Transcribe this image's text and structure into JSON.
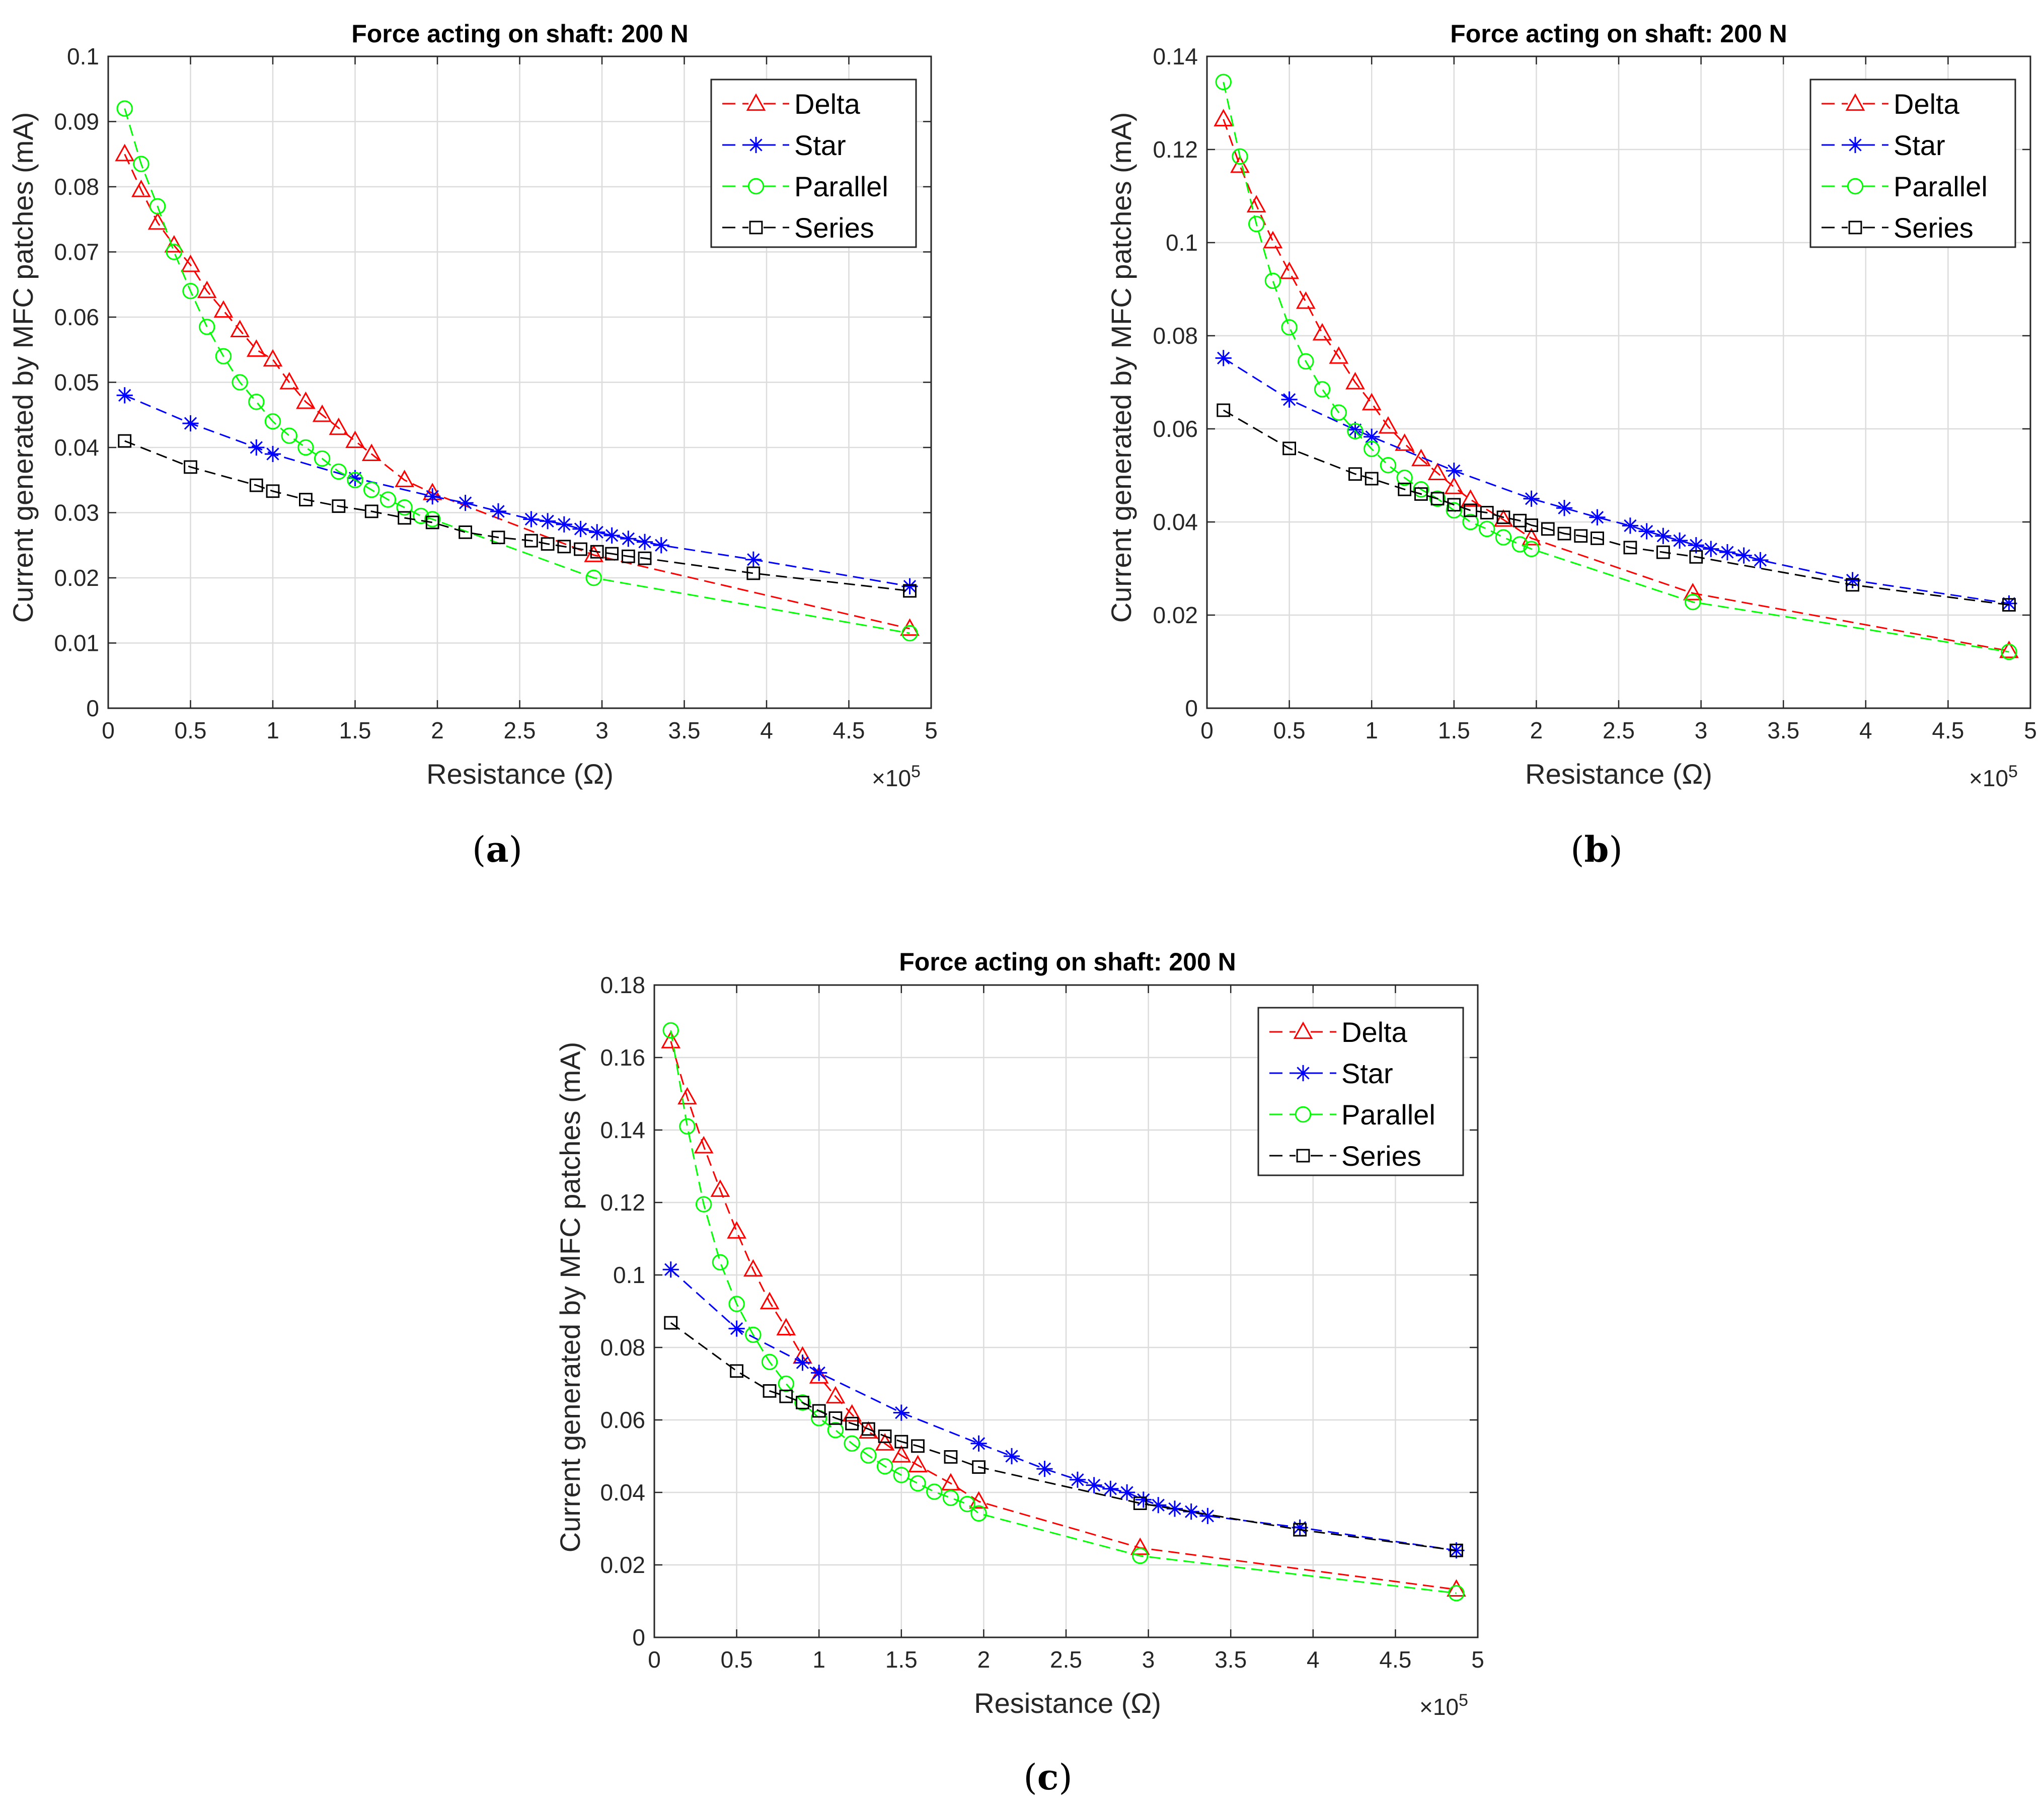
{
  "chart_data": [
    {
      "type": "line",
      "panel": "a",
      "caption_letter": "a",
      "title": "Force acting on shaft: 200 N",
      "xlabel": "Resistance (Ω)",
      "ylabel": "Current generated by MFC patches (mA)",
      "x_exponent_label": "×10",
      "x_exponent": "5",
      "xlim": [
        0,
        500000
      ],
      "ylim": [
        0,
        0.1
      ],
      "xticks": [
        0,
        50000,
        100000,
        150000,
        200000,
        250000,
        300000,
        350000,
        400000,
        450000,
        500000
      ],
      "xtick_labels": [
        "0",
        "0.5",
        "1",
        "1.5",
        "2",
        "2.5",
        "3",
        "3.5",
        "4",
        "4.5",
        "5"
      ],
      "yticks": [
        0,
        0.01,
        0.02,
        0.03,
        0.04,
        0.05,
        0.06,
        0.07,
        0.08,
        0.09,
        0.1
      ],
      "ytick_labels": [
        "0",
        "0.01",
        "0.02",
        "0.03",
        "0.04",
        "0.05",
        "0.06",
        "0.07",
        "0.08",
        "0.09",
        "0.1"
      ],
      "grid": true,
      "legend_position": "top-right",
      "series": [
        {
          "name": "Delta",
          "color": "#ff0000",
          "marker": "triangle",
          "x": [
            10000,
            20000,
            30000,
            40000,
            50000,
            60000,
            70000,
            80000,
            90000,
            100000,
            110000,
            120000,
            130000,
            140000,
            150000,
            160000,
            180000,
            197000,
            295000,
            487000
          ],
          "y": [
            0.085,
            0.0795,
            0.0745,
            0.071,
            0.068,
            0.064,
            0.061,
            0.058,
            0.055,
            0.0535,
            0.05,
            0.047,
            0.045,
            0.043,
            0.041,
            0.039,
            0.035,
            0.033,
            0.0235,
            0.0122
          ]
        },
        {
          "name": "Star",
          "color": "#0000ff",
          "marker": "star",
          "x": [
            10000,
            50000,
            90000,
            100000,
            150000,
            197000,
            217000,
            237000,
            257000,
            267000,
            277000,
            287000,
            297000,
            306000,
            316000,
            326000,
            336000,
            392000,
            487000
          ],
          "y": [
            0.048,
            0.0437,
            0.04,
            0.039,
            0.0353,
            0.0325,
            0.0315,
            0.0302,
            0.029,
            0.0287,
            0.0282,
            0.0275,
            0.027,
            0.0265,
            0.026,
            0.0255,
            0.025,
            0.0228,
            0.0187
          ]
        },
        {
          "name": "Parallel",
          "color": "#00ff00",
          "marker": "circle",
          "x": [
            10000,
            20000,
            30000,
            40000,
            50000,
            60000,
            70000,
            80000,
            90000,
            100000,
            110000,
            120000,
            130000,
            140000,
            150000,
            160000,
            170000,
            180000,
            190000,
            197000,
            295000,
            487000
          ],
          "y": [
            0.092,
            0.0835,
            0.077,
            0.07,
            0.064,
            0.0585,
            0.054,
            0.05,
            0.047,
            0.044,
            0.0418,
            0.04,
            0.0383,
            0.0363,
            0.035,
            0.0335,
            0.032,
            0.0308,
            0.0295,
            0.029,
            0.02,
            0.0115
          ]
        },
        {
          "name": "Series",
          "color": "#000000",
          "marker": "square",
          "x": [
            10000,
            50000,
            90000,
            100000,
            120000,
            140000,
            160000,
            180000,
            197000,
            217000,
            237000,
            257000,
            267000,
            277000,
            287000,
            297000,
            306000,
            316000,
            326000,
            392000,
            487000
          ],
          "y": [
            0.041,
            0.037,
            0.0342,
            0.0333,
            0.032,
            0.031,
            0.0302,
            0.0292,
            0.0285,
            0.027,
            0.0262,
            0.0257,
            0.0252,
            0.0248,
            0.0244,
            0.024,
            0.0237,
            0.0233,
            0.023,
            0.0207,
            0.018
          ]
        }
      ]
    },
    {
      "type": "line",
      "panel": "b",
      "caption_letter": "b",
      "title": "Force acting on shaft: 200 N",
      "xlabel": "Resistance (Ω)",
      "ylabel": "Current generated by MFC patches (mA)",
      "x_exponent_label": "×10",
      "x_exponent": "5",
      "xlim": [
        0,
        500000
      ],
      "ylim": [
        0,
        0.14
      ],
      "xticks": [
        0,
        50000,
        100000,
        150000,
        200000,
        250000,
        300000,
        350000,
        400000,
        450000,
        500000
      ],
      "xtick_labels": [
        "0",
        "0.5",
        "1",
        "1.5",
        "2",
        "2.5",
        "3",
        "3.5",
        "4",
        "4.5",
        "5"
      ],
      "yticks": [
        0,
        0.02,
        0.04,
        0.06,
        0.08,
        0.1,
        0.12,
        0.14
      ],
      "ytick_labels": [
        "0",
        "0.02",
        "0.04",
        "0.06",
        "0.08",
        "0.1",
        "0.12",
        "0.14"
      ],
      "grid": true,
      "legend_position": "top-right",
      "series": [
        {
          "name": "Delta",
          "color": "#ff0000",
          "marker": "triangle",
          "x": [
            10000,
            20000,
            30000,
            40000,
            50000,
            60000,
            70000,
            80000,
            90000,
            100000,
            110000,
            120000,
            130000,
            140000,
            150000,
            160000,
            180000,
            197000,
            295000,
            487000
          ],
          "y": [
            0.1265,
            0.1165,
            0.108,
            0.1003,
            0.0937,
            0.0873,
            0.0805,
            0.0755,
            0.07,
            0.0655,
            0.0605,
            0.0568,
            0.0535,
            0.0505,
            0.0475,
            0.0448,
            0.0405,
            0.0365,
            0.0247,
            0.0123
          ]
        },
        {
          "name": "Star",
          "color": "#0000ff",
          "marker": "star",
          "x": [
            10000,
            50000,
            90000,
            100000,
            150000,
            197000,
            217000,
            237000,
            257000,
            267000,
            277000,
            287000,
            297000,
            306000,
            316000,
            326000,
            336000,
            392000,
            487000
          ],
          "y": [
            0.0752,
            0.0663,
            0.0598,
            0.0583,
            0.051,
            0.045,
            0.043,
            0.041,
            0.0392,
            0.038,
            0.037,
            0.036,
            0.035,
            0.0342,
            0.0335,
            0.0328,
            0.0318,
            0.0275,
            0.0225
          ]
        },
        {
          "name": "Parallel",
          "color": "#00ff00",
          "marker": "circle",
          "x": [
            10000,
            20000,
            30000,
            40000,
            50000,
            60000,
            70000,
            80000,
            90000,
            100000,
            110000,
            120000,
            130000,
            140000,
            150000,
            160000,
            170000,
            180000,
            190000,
            197000,
            295000,
            487000
          ],
          "y": [
            0.1345,
            0.1185,
            0.104,
            0.0918,
            0.0818,
            0.0745,
            0.0685,
            0.0635,
            0.0595,
            0.0557,
            0.0522,
            0.0495,
            0.047,
            0.045,
            0.0425,
            0.04,
            0.0385,
            0.0367,
            0.0352,
            0.0342,
            0.0228,
            0.0121
          ]
        },
        {
          "name": "Series",
          "color": "#000000",
          "marker": "square",
          "x": [
            10000,
            50000,
            90000,
            100000,
            120000,
            130000,
            140000,
            150000,
            160000,
            170000,
            180000,
            190000,
            197000,
            207000,
            217000,
            227000,
            237000,
            257000,
            277000,
            297000,
            392000,
            487000
          ],
          "y": [
            0.064,
            0.0558,
            0.0503,
            0.0493,
            0.047,
            0.046,
            0.045,
            0.0437,
            0.0425,
            0.042,
            0.041,
            0.0403,
            0.0393,
            0.0385,
            0.0375,
            0.037,
            0.0365,
            0.0345,
            0.0335,
            0.0325,
            0.0265,
            0.0222
          ]
        }
      ]
    },
    {
      "type": "line",
      "panel": "c",
      "caption_letter": "c",
      "title": "Force acting on shaft: 200 N",
      "xlabel": "Resistance (Ω)",
      "ylabel": "Current generated by MFC patches (mA)",
      "x_exponent_label": "×10",
      "x_exponent": "5",
      "xlim": [
        0,
        500000
      ],
      "ylim": [
        0,
        0.18
      ],
      "xticks": [
        0,
        50000,
        100000,
        150000,
        200000,
        250000,
        300000,
        350000,
        400000,
        450000,
        500000
      ],
      "xtick_labels": [
        "0",
        "0.5",
        "1",
        "1.5",
        "2",
        "2.5",
        "3",
        "3.5",
        "4",
        "4.5",
        "5"
      ],
      "yticks": [
        0,
        0.02,
        0.04,
        0.06,
        0.08,
        0.1,
        0.12,
        0.14,
        0.16,
        0.18
      ],
      "ytick_labels": [
        "0",
        "0.02",
        "0.04",
        "0.06",
        "0.08",
        "0.1",
        "0.12",
        "0.14",
        "0.16",
        "0.18"
      ],
      "grid": true,
      "legend_position": "top-right",
      "series": [
        {
          "name": "Delta",
          "color": "#ff0000",
          "marker": "triangle",
          "x": [
            10000,
            20000,
            30000,
            40000,
            50000,
            60000,
            70000,
            80000,
            90000,
            100000,
            110000,
            120000,
            130000,
            140000,
            150000,
            160000,
            180000,
            197000,
            295000,
            487000
          ],
          "y": [
            0.1645,
            0.149,
            0.1355,
            0.1235,
            0.112,
            0.1015,
            0.0925,
            0.0853,
            0.0775,
            0.072,
            0.0665,
            0.0615,
            0.0568,
            0.0535,
            0.0502,
            0.0475,
            0.0425,
            0.0375,
            0.0247,
            0.0132
          ]
        },
        {
          "name": "Star",
          "color": "#0000ff",
          "marker": "star",
          "x": [
            10000,
            50000,
            90000,
            100000,
            150000,
            197000,
            217000,
            237000,
            257000,
            267000,
            277000,
            287000,
            297000,
            306000,
            316000,
            326000,
            336000,
            392000,
            487000
          ],
          "y": [
            0.1015,
            0.0852,
            0.0758,
            0.073,
            0.062,
            0.0535,
            0.05,
            0.0465,
            0.0435,
            0.042,
            0.041,
            0.04,
            0.038,
            0.0365,
            0.0355,
            0.0347,
            0.0335,
            0.0303,
            0.024
          ]
        },
        {
          "name": "Parallel",
          "color": "#00ff00",
          "marker": "circle",
          "x": [
            10000,
            20000,
            30000,
            40000,
            50000,
            60000,
            70000,
            80000,
            90000,
            100000,
            110000,
            120000,
            130000,
            140000,
            150000,
            160000,
            170000,
            180000,
            190000,
            197000,
            295000,
            487000
          ],
          "y": [
            0.1675,
            0.141,
            0.1195,
            0.1035,
            0.092,
            0.0835,
            0.076,
            0.07,
            0.0648,
            0.0605,
            0.0572,
            0.0535,
            0.0502,
            0.0472,
            0.0448,
            0.0425,
            0.0402,
            0.0385,
            0.0368,
            0.0342,
            0.0225,
            0.0122
          ]
        },
        {
          "name": "Series",
          "color": "#000000",
          "marker": "square",
          "x": [
            10000,
            50000,
            70000,
            80000,
            90000,
            100000,
            110000,
            120000,
            130000,
            140000,
            150000,
            160000,
            180000,
            197000,
            295000,
            392000,
            487000
          ],
          "y": [
            0.0868,
            0.0735,
            0.068,
            0.0665,
            0.0648,
            0.0625,
            0.0605,
            0.059,
            0.0575,
            0.0555,
            0.054,
            0.0528,
            0.0498,
            0.047,
            0.037,
            0.0297,
            0.024
          ]
        }
      ]
    }
  ]
}
